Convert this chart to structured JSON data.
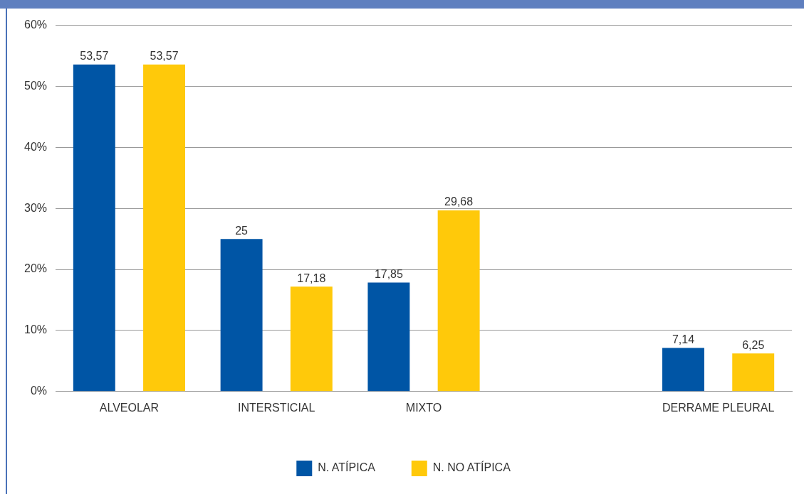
{
  "chart_data": {
    "type": "bar",
    "categories": [
      "ALVEOLAR",
      "INTERSTICIAL",
      "MIXTO",
      null,
      "DERRAME PLEURAL"
    ],
    "series": [
      {
        "name": "N. ATÍPICA",
        "color": "#0055a5",
        "values": [
          53.57,
          25,
          17.85,
          null,
          7.14
        ],
        "value_labels": [
          "53,57",
          "25",
          "17,85",
          null,
          "7,14"
        ]
      },
      {
        "name": "N. NO ATÍPICA",
        "color": "#ffc90a",
        "values": [
          53.57,
          17.18,
          29.68,
          null,
          6.25
        ],
        "value_labels": [
          "53,57",
          "17,18",
          "29,68",
          null,
          "6,25"
        ]
      }
    ],
    "ylim": [
      0,
      60
    ],
    "yticks": [
      {
        "value": 0,
        "label": "0%"
      },
      {
        "value": 10,
        "label": "10%"
      },
      {
        "value": 20,
        "label": "20%"
      },
      {
        "value": 30,
        "label": "30%"
      },
      {
        "value": 40,
        "label": "40%"
      },
      {
        "value": 50,
        "label": "50%"
      },
      {
        "value": 60,
        "label": "60%"
      }
    ],
    "grid": "y",
    "legend": "bottom"
  }
}
